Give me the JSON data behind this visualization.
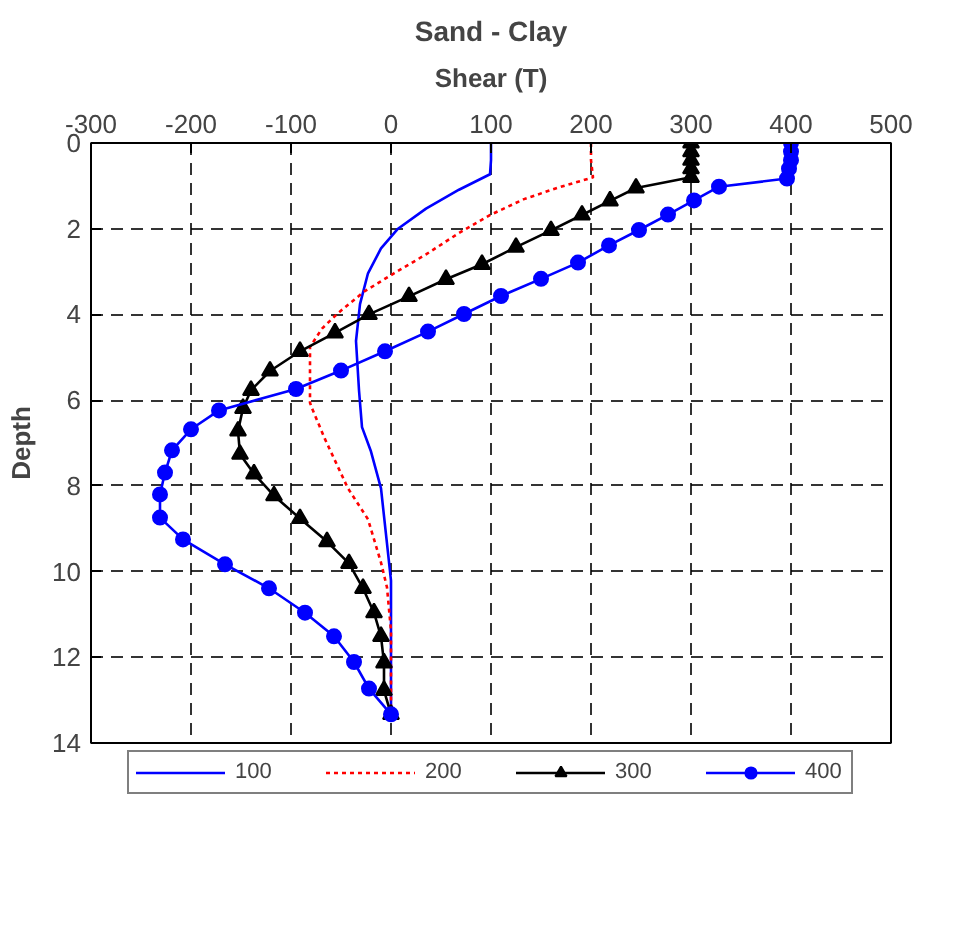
{
  "chart_data": {
    "type": "line",
    "title": "Sand - Clay",
    "xlabel": "Shear (T)",
    "ylabel": "Depth",
    "xlim": [
      -300,
      500
    ],
    "xticks": [
      -300,
      -200,
      -100,
      0,
      100,
      200,
      300,
      400,
      500
    ],
    "ylim": [
      14,
      0
    ],
    "yticks": [
      0,
      2,
      4,
      6,
      8,
      10,
      12,
      14
    ],
    "grid": true,
    "legend": "bottom",
    "series": [
      {
        "name": "100",
        "color": "#0000ff",
        "marker": "none",
        "line_style": "solid",
        "x": [
          100,
          100,
          99,
          68,
          35,
          7,
          -10,
          -23,
          -31,
          -35,
          -32,
          -29,
          -20,
          -10,
          -4,
          0,
          0
        ],
        "values": [
          0,
          0.4,
          0.73,
          1.09,
          1.53,
          2.0,
          2.46,
          3.04,
          3.76,
          4.62,
          5.77,
          6.63,
          7.2,
          8.06,
          9.35,
          10.21,
          13.33
        ]
      },
      {
        "name": "200",
        "color": "#ff0000",
        "marker": "none",
        "line_style": "dotted",
        "x": [
          200,
          200,
          202,
          166,
          133,
          100,
          68,
          35,
          3,
          -27,
          -53,
          -69,
          -81,
          -81,
          -79,
          -66,
          -43,
          -23,
          -10,
          -4,
          0,
          0
        ],
        "values": [
          0,
          0.4,
          0.8,
          1.05,
          1.31,
          1.67,
          2.1,
          2.6,
          3.04,
          3.47,
          3.97,
          4.33,
          4.76,
          6.06,
          6.19,
          6.91,
          8.06,
          8.78,
          9.79,
          10.37,
          11.38,
          13.33
        ]
      },
      {
        "name": "300",
        "color": "#000000",
        "marker": "triangle",
        "line_style": "solid",
        "x": [
          300,
          300,
          300,
          300,
          300,
          245,
          219,
          191,
          160,
          125,
          91,
          55,
          18,
          -22,
          -56,
          -91,
          -121,
          -140,
          -148,
          -153,
          -151,
          -137,
          -117,
          -91,
          -64,
          -42,
          -28,
          -17,
          -10,
          -7,
          -7,
          0
        ],
        "values": [
          0,
          0.2,
          0.4,
          0.6,
          0.8,
          1.05,
          1.35,
          1.68,
          2.04,
          2.43,
          2.83,
          3.18,
          3.58,
          4.0,
          4.43,
          4.86,
          5.32,
          5.77,
          6.19,
          6.72,
          7.26,
          7.72,
          8.23,
          8.76,
          9.3,
          9.81,
          10.39,
          10.96,
          11.51,
          12.13,
          12.77,
          13.33
        ]
      },
      {
        "name": "400",
        "color": "#0000ff",
        "marker": "circle",
        "line_style": "solid",
        "x": [
          400,
          400,
          400,
          398,
          396,
          328,
          303,
          277,
          248,
          218,
          187,
          150,
          110,
          73,
          37,
          -6,
          -50,
          -95,
          -172,
          -200,
          -219,
          -226,
          -231,
          -231,
          -208,
          -166,
          -122,
          -86,
          -57,
          -37,
          -22,
          0
        ],
        "values": [
          0,
          0.2,
          0.4,
          0.6,
          0.83,
          1.02,
          1.34,
          1.67,
          2.03,
          2.39,
          2.79,
          3.17,
          3.57,
          3.99,
          4.4,
          4.86,
          5.31,
          5.74,
          6.24,
          6.68,
          7.17,
          7.69,
          8.2,
          8.74,
          9.25,
          9.83,
          10.39,
          10.96,
          11.51,
          12.11,
          12.73,
          13.33
        ]
      }
    ]
  }
}
